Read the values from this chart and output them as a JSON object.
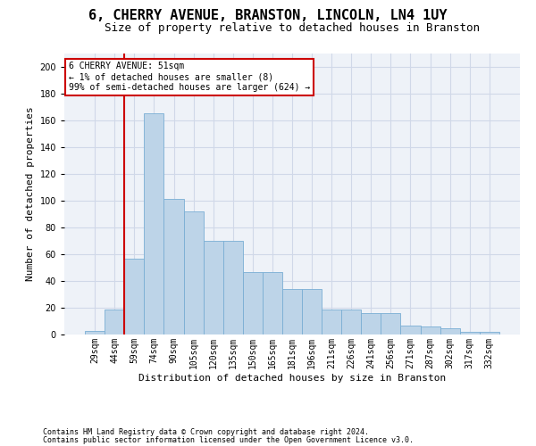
{
  "title": "6, CHERRY AVENUE, BRANSTON, LINCOLN, LN4 1UY",
  "subtitle": "Size of property relative to detached houses in Branston",
  "xlabel": "Distribution of detached houses by size in Branston",
  "ylabel": "Number of detached properties",
  "categories": [
    "29sqm",
    "44sqm",
    "59sqm",
    "74sqm",
    "90sqm",
    "105sqm",
    "120sqm",
    "135sqm",
    "150sqm",
    "165sqm",
    "181sqm",
    "196sqm",
    "211sqm",
    "226sqm",
    "241sqm",
    "256sqm",
    "271sqm",
    "287sqm",
    "302sqm",
    "317sqm",
    "332sqm"
  ],
  "values": [
    3,
    19,
    57,
    165,
    101,
    92,
    70,
    70,
    47,
    47,
    34,
    34,
    19,
    19,
    16,
    16,
    7,
    6,
    5,
    2,
    2
  ],
  "bar_color": "#bdd4e8",
  "bar_edge_color": "#7aaed4",
  "red_line_index": 1,
  "annotation_title": "6 CHERRY AVENUE: 51sqm",
  "annotation_line1": "← 1% of detached houses are smaller (8)",
  "annotation_line2": "99% of semi-detached houses are larger (624) →",
  "annotation_box_facecolor": "#ffffff",
  "annotation_box_edgecolor": "#cc0000",
  "vline_color": "#cc0000",
  "footer1": "Contains HM Land Registry data © Crown copyright and database right 2024.",
  "footer2": "Contains public sector information licensed under the Open Government Licence v3.0.",
  "ylim": [
    0,
    210
  ],
  "ytick_interval": 20,
  "title_fontsize": 11,
  "subtitle_fontsize": 9,
  "axis_label_fontsize": 8,
  "tick_fontsize": 7,
  "annotation_fontsize": 7,
  "footer_fontsize": 6,
  "background_color": "#eef2f8",
  "grid_color": "#d0d8e8",
  "figure_width": 6.0,
  "figure_height": 5.0,
  "figure_dpi": 100
}
